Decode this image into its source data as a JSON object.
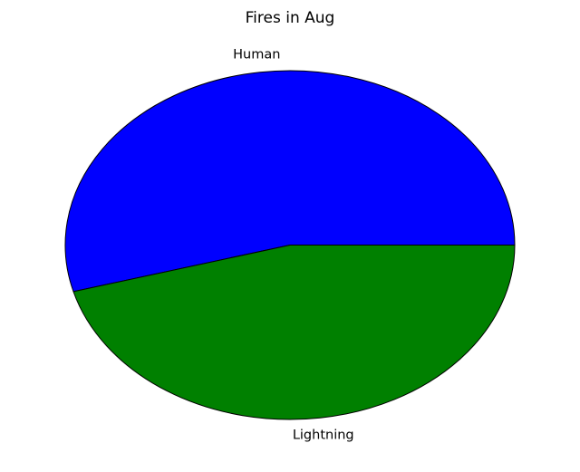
{
  "chart_data": {
    "type": "pie",
    "title": "Fires in Aug",
    "categories": [
      "Human",
      "Lightning"
    ],
    "values": [
      54.3,
      45.7
    ],
    "colors": [
      "#0000ff",
      "#008000"
    ],
    "edge_color": "#000000",
    "start_angle": 0,
    "direction": "counterclockwise"
  }
}
